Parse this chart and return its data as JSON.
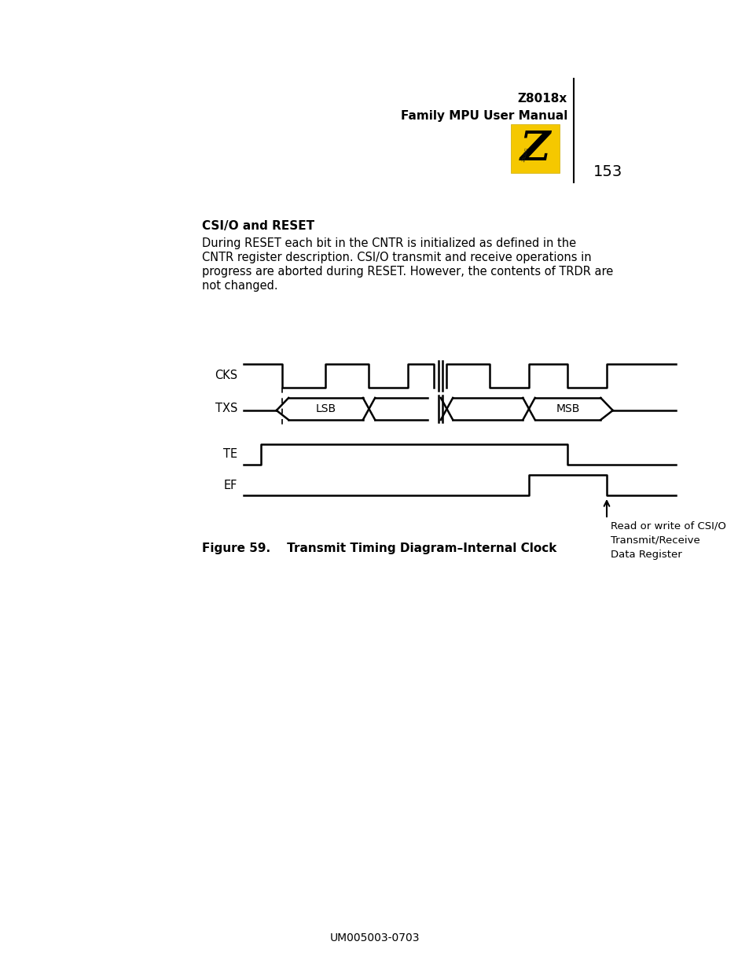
{
  "page_number": "153",
  "doc_id": "UM005003-0703",
  "section_title": "CSI/O and RESET",
  "section_text_lines": [
    "During RESET each bit in the CNTR is initialized as defined in the",
    "CNTR register description. CSI/O transmit and receive operations in",
    "progress are aborted during RESET. However, the contents of TRDR are",
    "not changed."
  ],
  "figure_caption": "Figure 59.    Transmit Timing Diagram–Internal Clock",
  "annotation_text": "Read or write of CSI/O\nTransmit/Receive\nData Register",
  "bg_color": "#ffffff",
  "line_color": "#000000",
  "header_title1": "Z8018x",
  "header_title2": "Family MPU User Manual",
  "logo_color": "#F5C800",
  "logo_z_color": "#000000"
}
